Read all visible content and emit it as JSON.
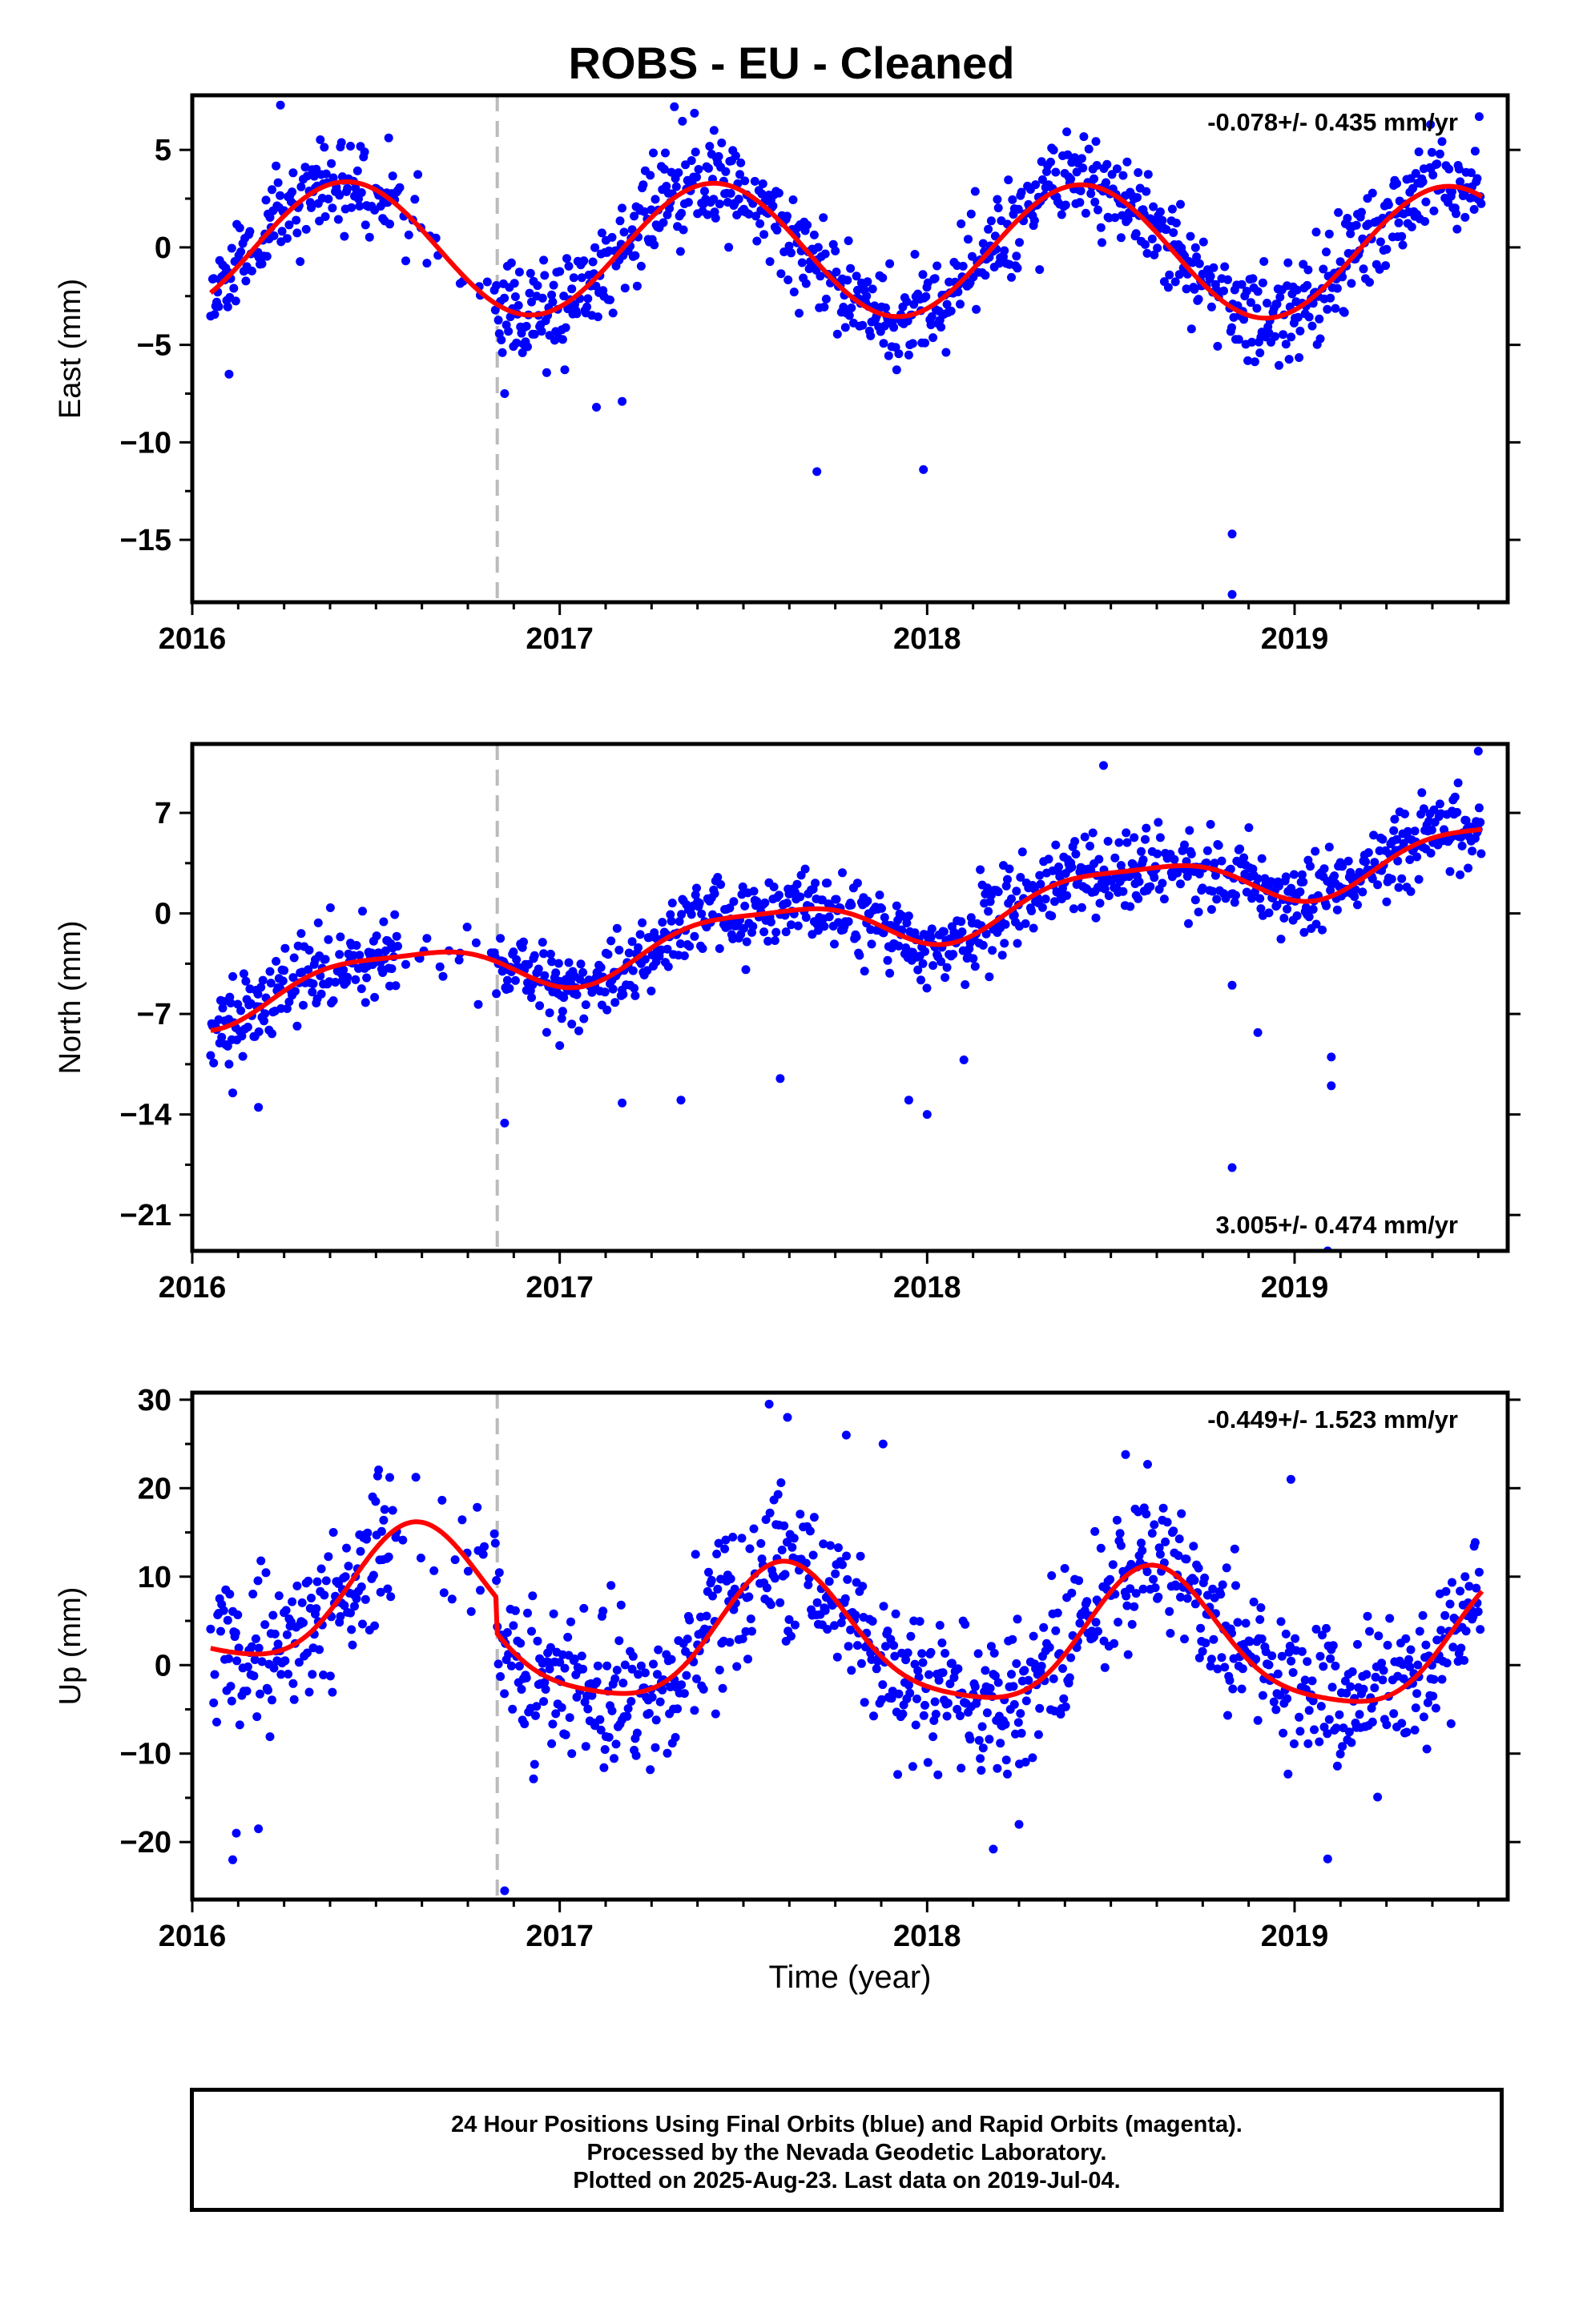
{
  "title": "ROBS  - EU - Cleaned",
  "xlabel": "Time (year)",
  "footer": [
    "24 Hour Positions Using Final Orbits (blue) and Rapid Orbits (magenta).",
    "Processed by the Nevada Geodetic Laboratory.",
    "Plotted on 2025-Aug-23. Last data on 2019-Jul-04."
  ],
  "colors": {
    "points": "#0000ff",
    "model": "#ff0000",
    "break": "#bbbbbb",
    "frame": "#000000"
  },
  "chart_data": [
    {
      "type": "scatter",
      "name": "east",
      "ylabel": "East (mm)",
      "rate_label": "-0.078+/- 0.435 mm/yr",
      "rate_position": "top-right",
      "xlim": [
        2016.0,
        2019.58
      ],
      "ylim": [
        -18.2,
        7.8
      ],
      "xticks": [
        2016,
        2017,
        2018,
        2019
      ],
      "yticks": [
        5,
        0,
        -5,
        -10,
        -15
      ],
      "ytick_labels": [
        "5",
        "0",
        "−5",
        "−10",
        "−15"
      ],
      "grid": false,
      "break_year": 2016.83,
      "data_span": [
        2016.05,
        2019.51
      ],
      "model": {
        "offset": 0.0,
        "trend": -0.078,
        "amp1": 3.4,
        "peak1": 0.42,
        "amp2": 0.0,
        "peak2": 0.0,
        "break_step": 0.0
      },
      "scatter_sd": 1.25,
      "outliers": [
        [
          2016.1,
          -6.5
        ],
        [
          2016.85,
          -7.5
        ],
        [
          2017.1,
          -8.2
        ],
        [
          2017.17,
          -7.9
        ],
        [
          2017.7,
          -11.5
        ],
        [
          2017.99,
          -11.4
        ],
        [
          2018.83,
          -14.7
        ],
        [
          2018.83,
          -17.8
        ],
        [
          2016.24,
          7.3
        ],
        [
          2017.42,
          6.0
        ],
        [
          2019.37,
          6.3
        ]
      ],
      "seed": 11
    },
    {
      "type": "scatter",
      "name": "north",
      "ylabel": "North (mm)",
      "rate_label": "3.005+/- 0.474 mm/yr",
      "rate_position": "bottom-right",
      "xlim": [
        2016.0,
        2019.58
      ],
      "ylim": [
        -23.5,
        11.8
      ],
      "xticks": [
        2016,
        2017,
        2018,
        2019
      ],
      "yticks": [
        7,
        0,
        -7,
        -14,
        -21
      ],
      "ytick_labels": [
        "7",
        "0",
        "−7",
        "−14",
        "−21"
      ],
      "grid": false,
      "break_year": 2016.83,
      "data_span": [
        2016.05,
        2019.51
      ],
      "model": {
        "offset": -6.0,
        "trend": 3.005,
        "amp1": 1.8,
        "peak1": 0.55,
        "amp2": 0.5,
        "peak2": 0.3,
        "break_step": 0.0
      },
      "scatter_sd": 1.35,
      "outliers": [
        [
          2016.1,
          -10.5
        ],
        [
          2016.11,
          -12.5
        ],
        [
          2016.18,
          -13.5
        ],
        [
          2016.85,
          -14.6
        ],
        [
          2017.0,
          -9.2
        ],
        [
          2017.17,
          -13.2
        ],
        [
          2017.33,
          -13.0
        ],
        [
          2017.6,
          -11.5
        ],
        [
          2017.95,
          -13.0
        ],
        [
          2018.0,
          -14.0
        ],
        [
          2018.1,
          -10.2
        ],
        [
          2018.83,
          -17.7
        ],
        [
          2018.83,
          -5.0
        ],
        [
          2018.9,
          -8.3
        ],
        [
          2019.1,
          -10.0
        ],
        [
          2019.1,
          -12.0
        ],
        [
          2019.5,
          11.3
        ],
        [
          2018.48,
          10.3
        ],
        [
          2019.09,
          -23.5
        ]
      ],
      "seed": 23
    },
    {
      "type": "scatter",
      "name": "up",
      "ylabel": "Up (mm)",
      "rate_label": "-0.449+/- 1.523 mm/yr",
      "rate_position": "top-right",
      "xlim": [
        2016.0,
        2019.58
      ],
      "ylim": [
        -26.5,
        30.8
      ],
      "xticks": [
        2016,
        2017,
        2018,
        2019
      ],
      "yticks": [
        30,
        20,
        10,
        0,
        -10,
        -20
      ],
      "ytick_labels": [
        "30",
        "20",
        "10",
        "0",
        "−10",
        "−20"
      ],
      "grid": false,
      "break_year": 2016.83,
      "data_span": [
        2016.05,
        2019.51
      ],
      "model": {
        "offset": 3.5,
        "trend": -0.449,
        "amp1": 7.5,
        "peak1": 0.62,
        "amp2": 1.5,
        "peak2": 0.6,
        "break_step": 4.0
      },
      "scatter_sd": 4.0,
      "outliers": [
        [
          2016.11,
          -22.0
        ],
        [
          2016.12,
          -19.0
        ],
        [
          2016.18,
          -18.5
        ],
        [
          2016.85,
          -25.5
        ],
        [
          2017.57,
          29.5
        ],
        [
          2017.62,
          28.0
        ],
        [
          2017.78,
          26.0
        ],
        [
          2017.88,
          25.0
        ],
        [
          2018.18,
          -20.8
        ],
        [
          2018.25,
          -18.0
        ],
        [
          2018.54,
          23.8
        ],
        [
          2019.09,
          -21.9
        ],
        [
          2018.99,
          21.0
        ],
        [
          2018.6,
          22.7
        ]
      ],
      "seed": 37
    }
  ]
}
